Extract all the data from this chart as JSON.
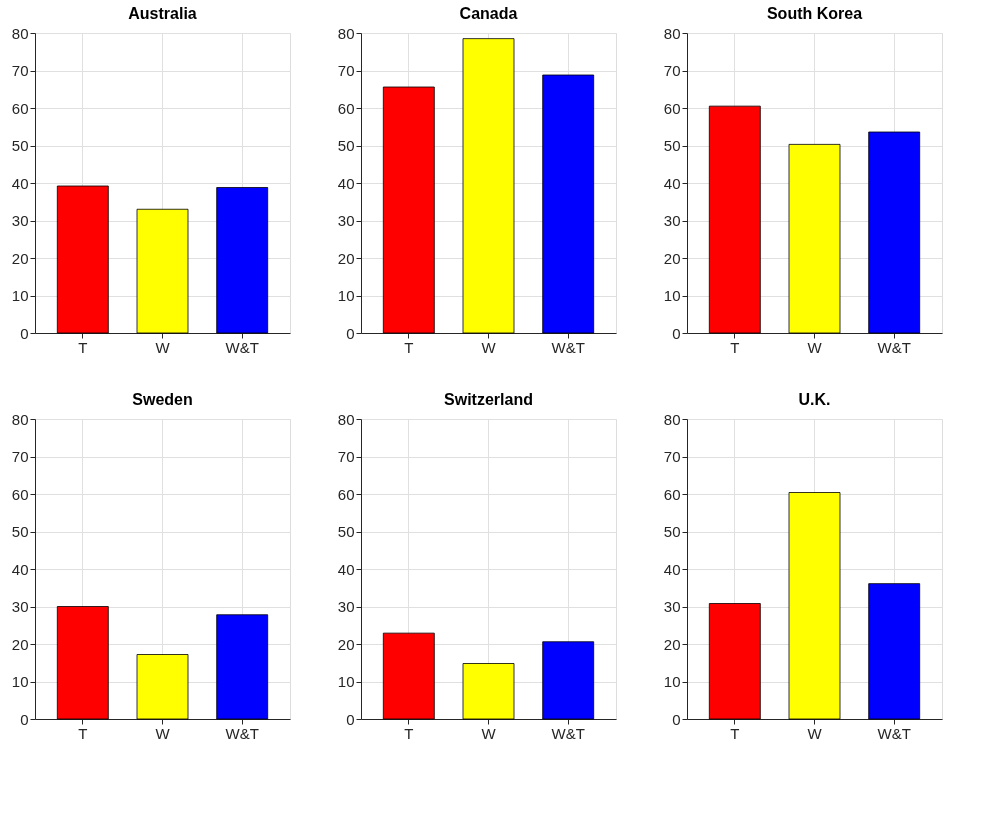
{
  "chart_data": [
    {
      "type": "bar",
      "title": "Australia",
      "categories": [
        "T",
        "W",
        "W&T"
      ],
      "values": [
        39.2,
        33,
        38.8
      ],
      "colors": [
        "#ff0000",
        "#ffff00",
        "#0000ff"
      ],
      "ylim": [
        0,
        80
      ],
      "yticks": [
        0,
        10,
        20,
        30,
        40,
        50,
        60,
        70,
        80
      ],
      "grid": true
    },
    {
      "type": "bar",
      "title": "Canada",
      "categories": [
        "T",
        "W",
        "W&T"
      ],
      "values": [
        65.6,
        78.5,
        68.8
      ],
      "colors": [
        "#ff0000",
        "#ffff00",
        "#0000ff"
      ],
      "ylim": [
        0,
        80
      ],
      "yticks": [
        0,
        10,
        20,
        30,
        40,
        50,
        60,
        70,
        80
      ],
      "grid": true
    },
    {
      "type": "bar",
      "title": "South Korea",
      "categories": [
        "T",
        "W",
        "W&T"
      ],
      "values": [
        60.5,
        50.3,
        53.6
      ],
      "colors": [
        "#ff0000",
        "#ffff00",
        "#0000ff"
      ],
      "ylim": [
        0,
        80
      ],
      "yticks": [
        0,
        10,
        20,
        30,
        40,
        50,
        60,
        70,
        80
      ],
      "grid": true
    },
    {
      "type": "bar",
      "title": "Sweden",
      "categories": [
        "T",
        "W",
        "W&T"
      ],
      "values": [
        30,
        17.2,
        27.8
      ],
      "colors": [
        "#ff0000",
        "#ffff00",
        "#0000ff"
      ],
      "ylim": [
        0,
        80
      ],
      "yticks": [
        0,
        10,
        20,
        30,
        40,
        50,
        60,
        70,
        80
      ],
      "grid": true
    },
    {
      "type": "bar",
      "title": "Switzerland",
      "categories": [
        "T",
        "W",
        "W&T"
      ],
      "values": [
        22.9,
        14.8,
        20.6
      ],
      "colors": [
        "#ff0000",
        "#ffff00",
        "#0000ff"
      ],
      "ylim": [
        0,
        80
      ],
      "yticks": [
        0,
        10,
        20,
        30,
        40,
        50,
        60,
        70,
        80
      ],
      "grid": true
    },
    {
      "type": "bar",
      "title": "U.K.",
      "categories": [
        "T",
        "W",
        "W&T"
      ],
      "values": [
        30.8,
        60.4,
        36.1
      ],
      "colors": [
        "#ff0000",
        "#ffff00",
        "#0000ff"
      ],
      "ylim": [
        0,
        80
      ],
      "yticks": [
        0,
        10,
        20,
        30,
        40,
        50,
        60,
        70,
        80
      ],
      "grid": true
    }
  ]
}
